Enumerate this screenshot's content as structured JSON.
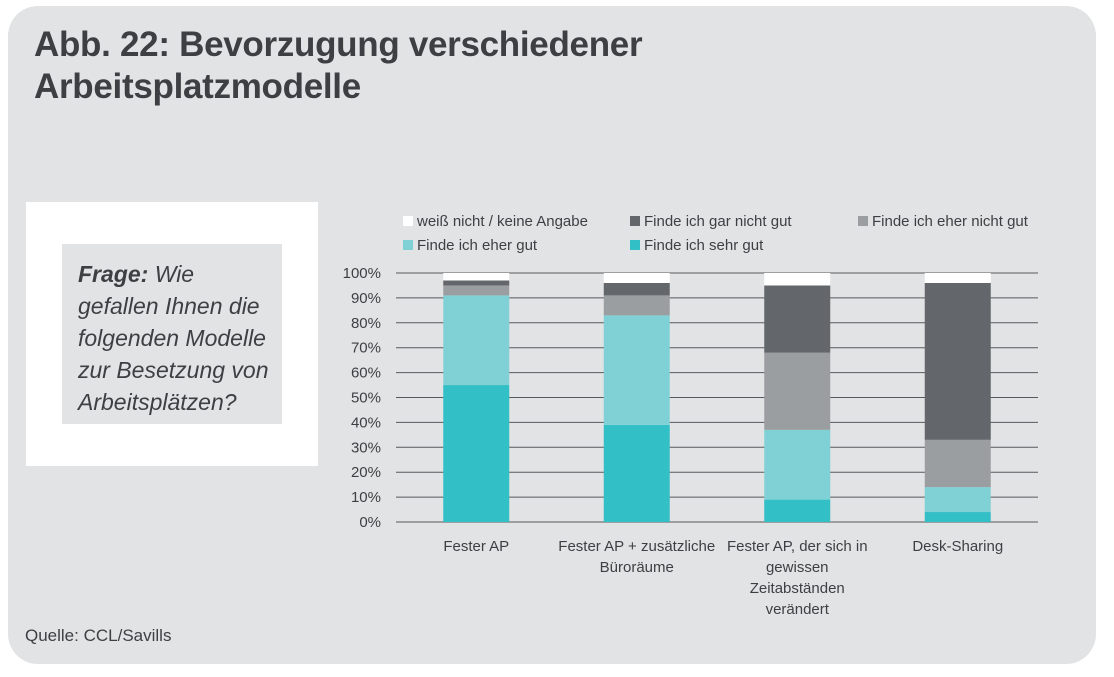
{
  "title_line1": "Abb. 22: Bevorzugung verschiedener",
  "title_line2": "Arbeitsplatzmodelle",
  "question_label": "Frage:",
  "question_text": "Wie gefallen Ihnen die folgenden Modelle zur Besetzung von Arbeitsplätzen?",
  "source": "Quelle: CCL/Savills",
  "chart_data": {
    "type": "bar",
    "stacked": true,
    "categories": [
      [
        "Fester AP"
      ],
      [
        "Fester AP + zusätzliche",
        "Büroräume"
      ],
      [
        "Fester AP, der sich in",
        "gewissen",
        "Zeitabständen",
        "verändert"
      ],
      [
        "Desk-Sharing"
      ]
    ],
    "ylim": [
      0,
      100
    ],
    "yticks": [
      "0%",
      "10%",
      "20%",
      "30%",
      "40%",
      "50%",
      "60%",
      "70%",
      "80%",
      "90%",
      "100%"
    ],
    "grid": true,
    "legend_position": "top",
    "series": [
      {
        "name": "Finde ich sehr gut",
        "color": "#33bfc6",
        "values": [
          55,
          39,
          9,
          4
        ]
      },
      {
        "name": "Finde ich eher gut",
        "color": "#7fd1d6",
        "values": [
          36,
          44,
          28,
          10
        ]
      },
      {
        "name": "Finde ich eher nicht gut",
        "color": "#9b9ea1",
        "values": [
          4,
          8,
          31,
          19
        ]
      },
      {
        "name": "Finde ich gar nicht gut",
        "color": "#63676b",
        "values": [
          2,
          5,
          27,
          63
        ]
      },
      {
        "name": "weiß nicht / keine Angabe",
        "color": "#ffffff",
        "values": [
          3,
          4,
          5,
          4
        ]
      }
    ],
    "legend_order": [
      "weiß nicht / keine Angabe",
      "Finde ich gar nicht gut",
      "Finde ich eher nicht gut",
      "Finde ich eher gut",
      "Finde ich sehr gut"
    ]
  }
}
